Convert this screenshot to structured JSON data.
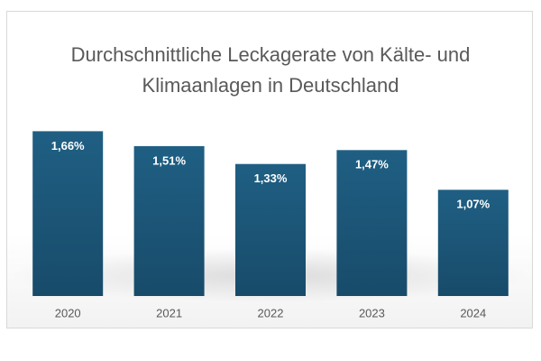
{
  "chart_data": {
    "type": "bar",
    "title": "Durchschnittliche Leckagerate von Kälte- und Klimaanlagen in Deutschland",
    "categories": [
      "2020",
      "2021",
      "2022",
      "2023",
      "2024"
    ],
    "values": [
      1.66,
      1.51,
      1.33,
      1.47,
      1.07
    ],
    "value_labels": [
      "1,66%",
      "1,51%",
      "1,33%",
      "1,47%",
      "1,07%"
    ],
    "color": "#1d587a"
  }
}
